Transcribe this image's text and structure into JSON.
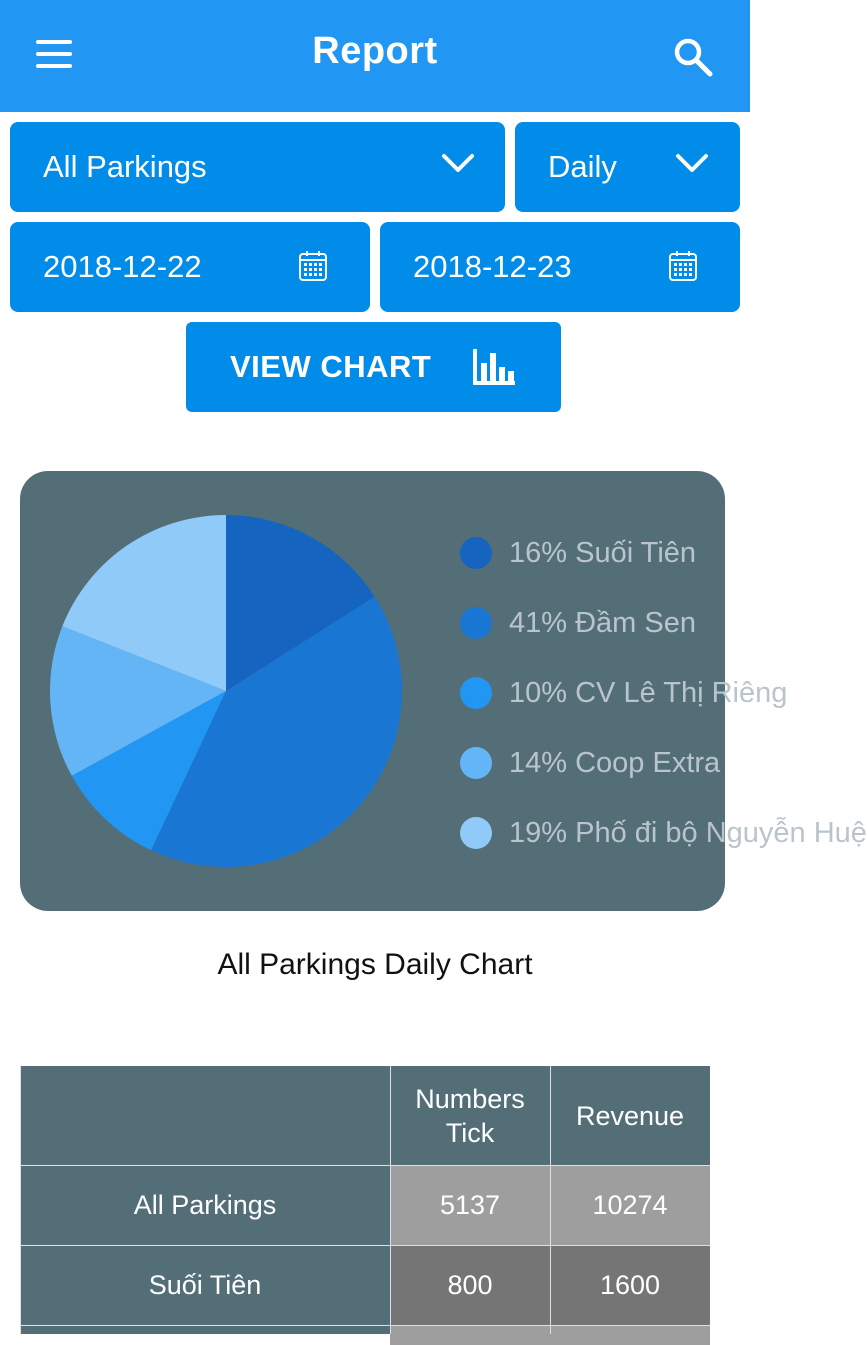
{
  "appbar": {
    "title": "Report",
    "menu_icon": "hamburger-menu-icon",
    "search_icon": "search-icon",
    "color": "#2196F3"
  },
  "filters": {
    "parking": "All Parkings",
    "period": "Daily",
    "start_date": "2018-12-22",
    "end_date": "2018-12-23",
    "field_color": "#008CE8"
  },
  "view_chart_button": {
    "label": "VIEW CHART",
    "icon": "bar-chart-icon"
  },
  "chart_data": {
    "type": "pie",
    "title": "All Parkings Daily Chart",
    "legend_position": "right",
    "slices": [
      {
        "label": "16% Suối Tiên",
        "value": 16,
        "color": "#1565C0"
      },
      {
        "label": "41% Đầm Sen",
        "value": 41,
        "color": "#1976D2"
      },
      {
        "label": "10% CV Lê Thị Riêng",
        "value": 10,
        "color": "#2196F3"
      },
      {
        "label": "14% Coop Extra",
        "value": 14,
        "color": "#64B5F6"
      },
      {
        "label": "19% Phố đi bộ Nguyễn Huệ",
        "value": 19,
        "color": "#90CAF9"
      }
    ]
  },
  "table": {
    "headers": [
      "",
      "Numbers Tick",
      "Revenue"
    ],
    "rows": [
      {
        "name": "All Parkings",
        "tick": "5137",
        "revenue": "10274"
      },
      {
        "name": "Suối Tiên",
        "tick": "800",
        "revenue": "1600"
      }
    ]
  }
}
